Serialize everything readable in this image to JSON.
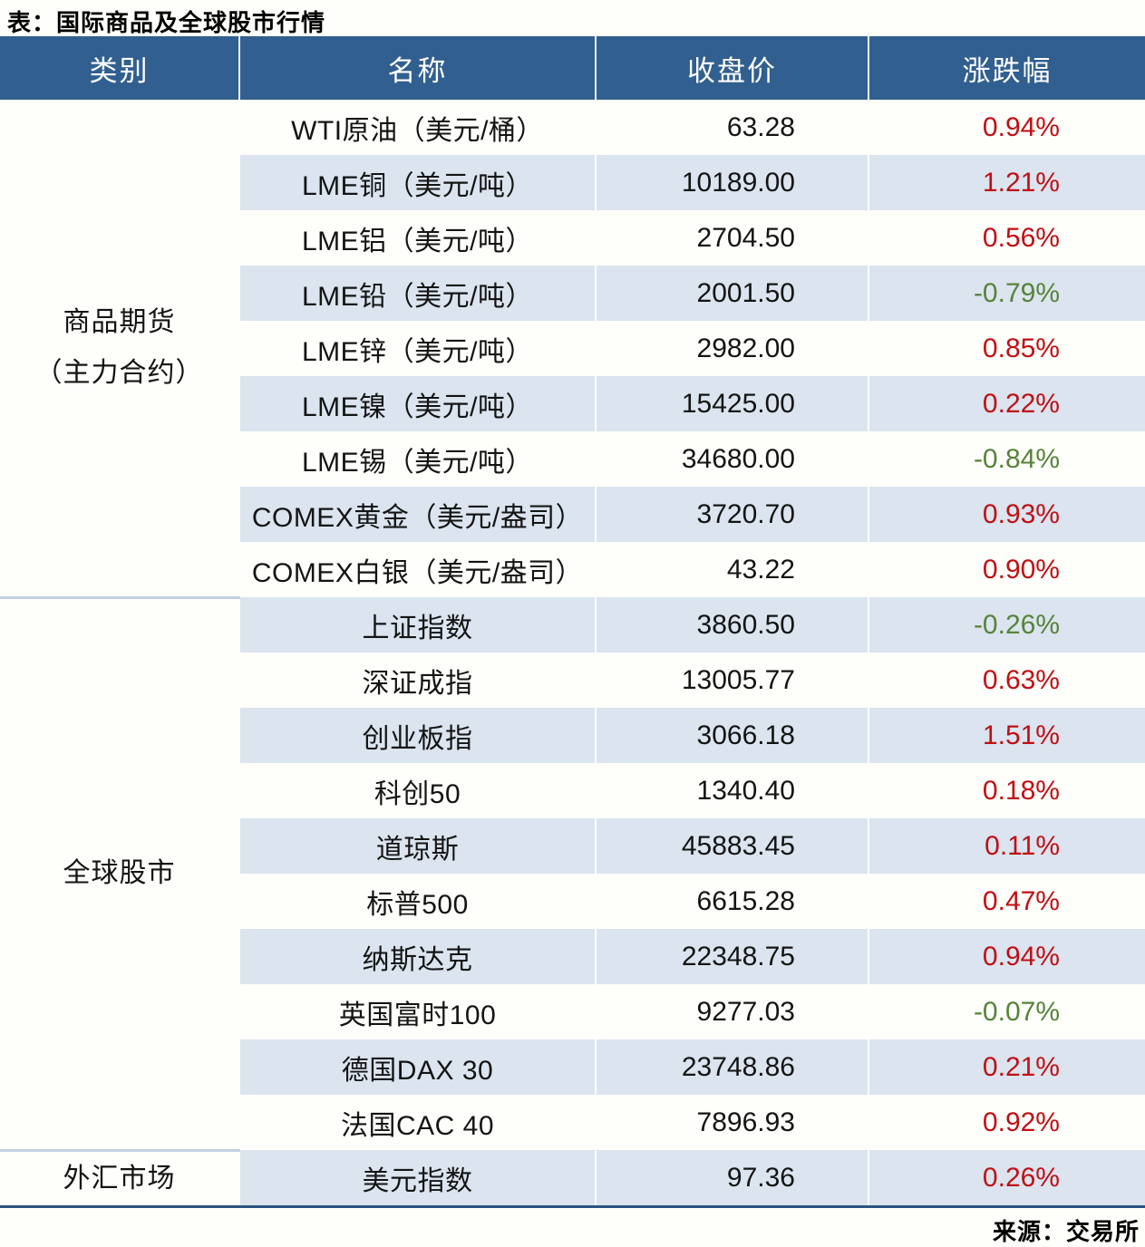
{
  "page": {
    "title": "表：国际商品及全球股市行情",
    "source": "来源：交易所"
  },
  "theme": {
    "colors": {
      "header_bg": "#315F8F",
      "header_text": "#FFFFFF",
      "row_bg": "#FEFEFA",
      "row_alt_bg": "#DBE4EF",
      "up_color": "#C00F14",
      "down_color": "#578339",
      "section_divider": "#C3D2E1",
      "bottom_rule": "#2D5380"
    }
  },
  "table": {
    "columns": {
      "category": "类别",
      "name": "名称",
      "close": "收盘价",
      "change": "涨跌幅"
    },
    "sections": [
      {
        "label_lines": [
          "商品期货",
          "（主力合约）"
        ],
        "row_span": 9
      },
      {
        "label_lines": [
          "全球股市"
        ],
        "row_span": 10
      },
      {
        "label_lines": [
          "外汇市场"
        ],
        "row_span": 1
      }
    ],
    "rows": [
      {
        "name": "WTI原油（美元/桶）",
        "close": "63.28",
        "change": "0.94%"
      },
      {
        "name": "LME铜（美元/吨）",
        "close": "10189.00",
        "change": "1.21%"
      },
      {
        "name": "LME铝（美元/吨）",
        "close": "2704.50",
        "change": "0.56%"
      },
      {
        "name": "LME铅（美元/吨）",
        "close": "2001.50",
        "change": "-0.79%"
      },
      {
        "name": "LME锌（美元/吨）",
        "close": "2982.00",
        "change": "0.85%"
      },
      {
        "name": "LME镍（美元/吨）",
        "close": "15425.00",
        "change": "0.22%"
      },
      {
        "name": "LME锡（美元/吨）",
        "close": "34680.00",
        "change": "-0.84%"
      },
      {
        "name": "COMEX黄金（美元/盎司）",
        "close": "3720.70",
        "change": "0.93%"
      },
      {
        "name": "COMEX白银（美元/盎司）",
        "close": "43.22",
        "change": "0.90%"
      },
      {
        "name": "上证指数",
        "close": "3860.50",
        "change": "-0.26%"
      },
      {
        "name": "深证成指",
        "close": "13005.77",
        "change": "0.63%"
      },
      {
        "name": "创业板指",
        "close": "3066.18",
        "change": "1.51%"
      },
      {
        "name": "科创50",
        "close": "1340.40",
        "change": "0.18%"
      },
      {
        "name": "道琼斯",
        "close": "45883.45",
        "change": "0.11%"
      },
      {
        "name": "标普500",
        "close": "6615.28",
        "change": "0.47%"
      },
      {
        "name": "纳斯达克",
        "close": "22348.75",
        "change": "0.94%"
      },
      {
        "name": "英国富时100",
        "close": "9277.03",
        "change": "-0.07%"
      },
      {
        "name": "德国DAX 30",
        "close": "23748.86",
        "change": "0.21%"
      },
      {
        "name": "法国CAC 40",
        "close": "7896.93",
        "change": "0.92%"
      },
      {
        "name": "美元指数",
        "close": "97.36",
        "change": "0.26%"
      }
    ]
  }
}
